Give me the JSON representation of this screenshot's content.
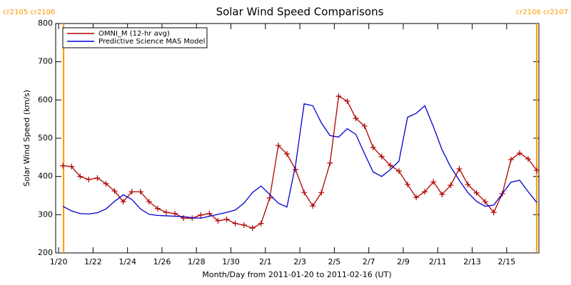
{
  "chart_data": {
    "type": "line",
    "title": "Solar Wind Speed Comparisons",
    "x_label": "Month/Day from 2011-01-20 to 2011-02-16 (UT)",
    "y_label": "Solar Wind Speed (km/s)",
    "x": [
      0.25,
      0.75,
      1.25,
      1.75,
      2.25,
      2.75,
      3.25,
      3.75,
      4.25,
      4.75,
      5.25,
      5.75,
      6.25,
      6.75,
      7.25,
      7.75,
      8.25,
      8.75,
      9.25,
      9.75,
      10.25,
      10.75,
      11.25,
      11.75,
      12.25,
      12.75,
      13.25,
      13.75,
      14.25,
      14.75,
      15.25,
      15.75,
      16.25,
      16.75,
      17.25,
      17.75,
      18.25,
      18.75,
      19.25,
      19.75,
      20.25,
      20.75,
      21.25,
      21.75,
      22.25,
      22.75,
      23.25,
      23.75,
      24.25,
      24.75,
      25.25,
      25.75,
      26.25,
      26.75,
      27.25,
      27.75
    ],
    "series": [
      {
        "name": "OMNI_M (12-hr avg)",
        "color": "#b00000",
        "markers": true,
        "values": [
          428,
          426,
          400,
          392,
          396,
          381,
          362,
          334,
          360,
          360,
          334,
          316,
          306,
          303,
          291,
          291,
          299,
          303,
          284,
          288,
          277,
          273,
          265,
          277,
          344,
          481,
          459,
          418,
          358,
          323,
          358,
          435,
          610,
          597,
          552,
          532,
          476,
          452,
          429,
          414,
          379,
          345,
          360,
          386,
          353,
          377,
          420,
          379,
          357,
          334,
          306,
          355,
          444,
          461,
          446,
          416
        ]
      },
      {
        "name": "Predictive Science MAS Model",
        "color": "#0000d0",
        "markers": false,
        "values": [
          322,
          310,
          303,
          302,
          305,
          315,
          335,
          352,
          340,
          315,
          301,
          298,
          297,
          296,
          295,
          292,
          291,
          296,
          301,
          306,
          312,
          330,
          358,
          375,
          353,
          330,
          320,
          430,
          590,
          585,
          540,
          507,
          503,
          525,
          510,
          460,
          412,
          400,
          418,
          440,
          555,
          565,
          585,
          530,
          470,
          425,
          390,
          358,
          335,
          322,
          325,
          355,
          385,
          390,
          360,
          332
        ]
      }
    ],
    "xlim": [
      -0.17,
      27.87
    ],
    "xticks": [
      {
        "value": 0,
        "label": "1/20"
      },
      {
        "value": 2,
        "label": "1/22"
      },
      {
        "value": 4,
        "label": "1/24"
      },
      {
        "value": 6,
        "label": "1/26"
      },
      {
        "value": 8,
        "label": "1/28"
      },
      {
        "value": 10,
        "label": "1/30"
      },
      {
        "value": 12,
        "label": "2/1"
      },
      {
        "value": 14,
        "label": "2/3"
      },
      {
        "value": 16,
        "label": "2/5"
      },
      {
        "value": 18,
        "label": "2/7"
      },
      {
        "value": 20,
        "label": "2/9"
      },
      {
        "value": 22,
        "label": "2/11"
      },
      {
        "value": 24,
        "label": "2/13"
      },
      {
        "value": 26,
        "label": "2/15"
      }
    ],
    "ylim": [
      200,
      800
    ],
    "yticks": [
      200,
      300,
      400,
      500,
      600,
      700,
      800
    ],
    "annotations": [
      {
        "text": "cr2105 cr2106",
        "x": 0.29,
        "color": "#ff9900"
      },
      {
        "text": "cr2106 cr2107",
        "x": 27.74,
        "color": "#ff9900"
      }
    ],
    "legend": "top-left"
  }
}
